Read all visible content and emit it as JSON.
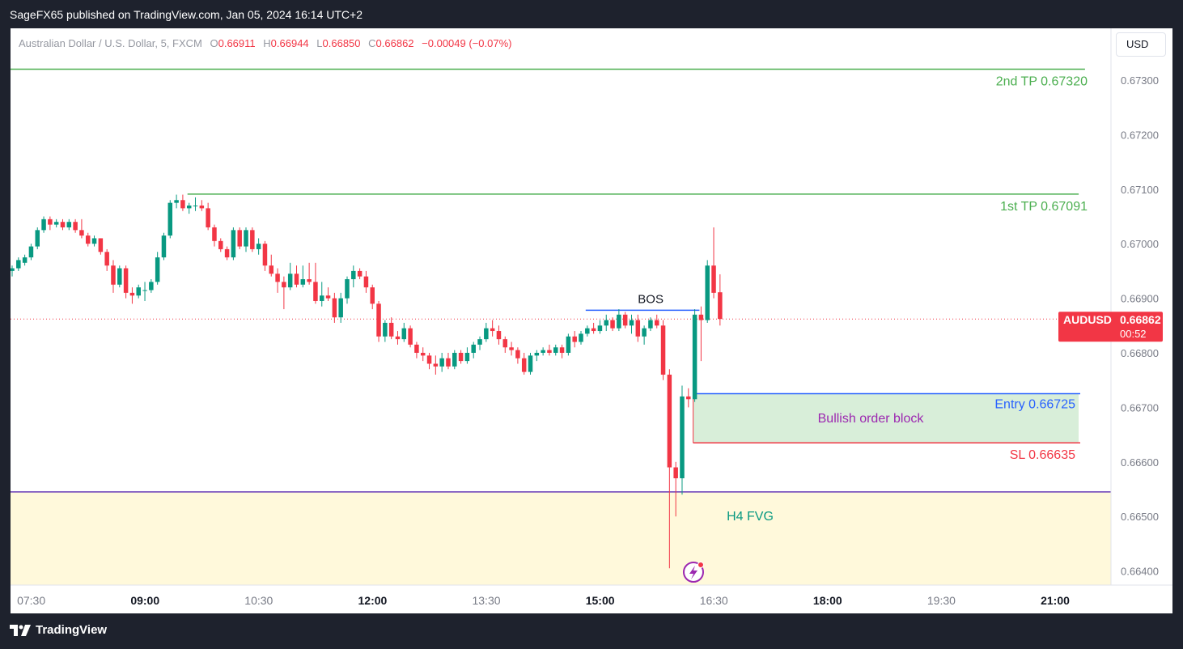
{
  "header": {
    "publisher": "SageFX65 published on TradingView.com, Jan 05, 2024 16:14 UTC+2"
  },
  "legend": {
    "symbol": "Australian Dollar / U.S. Dollar, 5, FXCM",
    "open_label": "O",
    "open": "0.66911",
    "high_label": "H",
    "high": "0.66944",
    "low_label": "L",
    "low": "0.66850",
    "close_label": "C",
    "close": "0.66862",
    "change": "−0.00049 (−0.07%)"
  },
  "currency_button": "USD",
  "footer": {
    "brand": "TradingView"
  },
  "colors": {
    "up": "#089981",
    "down": "#f23645",
    "tp_line": "#4caf50",
    "entry_line": "#2962ff",
    "sl_line": "#f23645",
    "order_block_fill": "#d8eed9",
    "fvg_fill": "#fff9db",
    "fvg_line": "#673ab7",
    "bos_line": "#2962ff"
  },
  "chart_data": {
    "type": "candlestick",
    "symbol": "AUDUSD",
    "timeframe": "5",
    "ylim": [
      0.6637,
      0.6735
    ],
    "xlim": [
      "07:20",
      "21:30"
    ],
    "y_ticks": [
      "0.67300",
      "0.67200",
      "0.67100",
      "0.67000",
      "0.66900",
      "0.66800",
      "0.66700",
      "0.66600",
      "0.66500",
      "0.66400"
    ],
    "x_ticks": [
      {
        "label": "07:30",
        "bold": false
      },
      {
        "label": "09:00",
        "bold": true
      },
      {
        "label": "10:30",
        "bold": false
      },
      {
        "label": "12:00",
        "bold": true
      },
      {
        "label": "13:30",
        "bold": false
      },
      {
        "label": "15:00",
        "bold": true
      },
      {
        "label": "16:30",
        "bold": false
      },
      {
        "label": "18:00",
        "bold": true
      },
      {
        "label": "19:30",
        "bold": false
      },
      {
        "label": "21:00",
        "bold": true
      }
    ],
    "price_tag": {
      "symbol": "AUDUSD",
      "price": "0.66862",
      "countdown": "00:52"
    },
    "last_price": 0.66862,
    "candles": [
      {
        "t": "07:20",
        "o": 0.6695,
        "h": 0.6696,
        "l": 0.6694,
        "c": 0.66955
      },
      {
        "t": "07:25",
        "o": 0.66955,
        "h": 0.66975,
        "l": 0.6695,
        "c": 0.6697
      },
      {
        "t": "07:30",
        "o": 0.66965,
        "h": 0.6698,
        "l": 0.6696,
        "c": 0.66975
      },
      {
        "t": "07:35",
        "o": 0.66975,
        "h": 0.67,
        "l": 0.6697,
        "c": 0.66995
      },
      {
        "t": "07:40",
        "o": 0.66995,
        "h": 0.6703,
        "l": 0.6699,
        "c": 0.67025
      },
      {
        "t": "07:45",
        "o": 0.67025,
        "h": 0.6705,
        "l": 0.6702,
        "c": 0.67045
      },
      {
        "t": "07:50",
        "o": 0.67045,
        "h": 0.6705,
        "l": 0.67025,
        "c": 0.67035
      },
      {
        "t": "07:55",
        "o": 0.67035,
        "h": 0.67045,
        "l": 0.6703,
        "c": 0.6704
      },
      {
        "t": "08:00",
        "o": 0.6704,
        "h": 0.67045,
        "l": 0.67025,
        "c": 0.6703
      },
      {
        "t": "08:05",
        "o": 0.6703,
        "h": 0.67045,
        "l": 0.67025,
        "c": 0.6704
      },
      {
        "t": "08:10",
        "o": 0.6704,
        "h": 0.67045,
        "l": 0.6702,
        "c": 0.67025
      },
      {
        "t": "08:15",
        "o": 0.67025,
        "h": 0.67045,
        "l": 0.6701,
        "c": 0.67015
      },
      {
        "t": "08:20",
        "o": 0.67015,
        "h": 0.6702,
        "l": 0.66995,
        "c": 0.67
      },
      {
        "t": "08:25",
        "o": 0.67,
        "h": 0.67015,
        "l": 0.66995,
        "c": 0.6701
      },
      {
        "t": "08:30",
        "o": 0.6701,
        "h": 0.6701,
        "l": 0.6698,
        "c": 0.66985
      },
      {
        "t": "08:35",
        "o": 0.66985,
        "h": 0.6699,
        "l": 0.6695,
        "c": 0.6696
      },
      {
        "t": "08:40",
        "o": 0.6696,
        "h": 0.6697,
        "l": 0.6691,
        "c": 0.66925
      },
      {
        "t": "08:45",
        "o": 0.66925,
        "h": 0.6696,
        "l": 0.6692,
        "c": 0.66955
      },
      {
        "t": "08:50",
        "o": 0.66955,
        "h": 0.6696,
        "l": 0.669,
        "c": 0.6691
      },
      {
        "t": "08:55",
        "o": 0.6691,
        "h": 0.6692,
        "l": 0.6689,
        "c": 0.66905
      },
      {
        "t": "09:00",
        "o": 0.66905,
        "h": 0.66925,
        "l": 0.669,
        "c": 0.6692
      },
      {
        "t": "09:05",
        "o": 0.66915,
        "h": 0.6693,
        "l": 0.66895,
        "c": 0.66915
      },
      {
        "t": "09:10",
        "o": 0.66915,
        "h": 0.66935,
        "l": 0.6691,
        "c": 0.6693
      },
      {
        "t": "09:15",
        "o": 0.6693,
        "h": 0.66985,
        "l": 0.66925,
        "c": 0.66975
      },
      {
        "t": "09:20",
        "o": 0.66975,
        "h": 0.6702,
        "l": 0.6697,
        "c": 0.67015
      },
      {
        "t": "09:25",
        "o": 0.67015,
        "h": 0.6708,
        "l": 0.6701,
        "c": 0.67075
      },
      {
        "t": "09:30",
        "o": 0.67075,
        "h": 0.6709,
        "l": 0.67065,
        "c": 0.6708
      },
      {
        "t": "09:35",
        "o": 0.6708,
        "h": 0.6709,
        "l": 0.6706,
        "c": 0.67065
      },
      {
        "t": "09:40",
        "o": 0.67065,
        "h": 0.67075,
        "l": 0.67055,
        "c": 0.6707
      },
      {
        "t": "09:45",
        "o": 0.6707,
        "h": 0.67085,
        "l": 0.6706,
        "c": 0.6707
      },
      {
        "t": "09:50",
        "o": 0.6707,
        "h": 0.6708,
        "l": 0.6706,
        "c": 0.67065
      },
      {
        "t": "09:55",
        "o": 0.67065,
        "h": 0.67075,
        "l": 0.67025,
        "c": 0.6703
      },
      {
        "t": "10:00",
        "o": 0.6703,
        "h": 0.67035,
        "l": 0.66995,
        "c": 0.67005
      },
      {
        "t": "10:05",
        "o": 0.67005,
        "h": 0.6701,
        "l": 0.66985,
        "c": 0.6699
      },
      {
        "t": "10:10",
        "o": 0.6699,
        "h": 0.66995,
        "l": 0.6697,
        "c": 0.66975
      },
      {
        "t": "10:15",
        "o": 0.66975,
        "h": 0.6703,
        "l": 0.6697,
        "c": 0.67025
      },
      {
        "t": "10:20",
        "o": 0.67025,
        "h": 0.6703,
        "l": 0.6699,
        "c": 0.66995
      },
      {
        "t": "10:25",
        "o": 0.66995,
        "h": 0.6703,
        "l": 0.66985,
        "c": 0.67025
      },
      {
        "t": "10:30",
        "o": 0.67025,
        "h": 0.6703,
        "l": 0.66985,
        "c": 0.6699
      },
      {
        "t": "10:35",
        "o": 0.6699,
        "h": 0.6701,
        "l": 0.6698,
        "c": 0.67
      },
      {
        "t": "10:40",
        "o": 0.67,
        "h": 0.67005,
        "l": 0.6695,
        "c": 0.6696
      },
      {
        "t": "10:45",
        "o": 0.6696,
        "h": 0.6698,
        "l": 0.6694,
        "c": 0.66945
      },
      {
        "t": "10:50",
        "o": 0.66945,
        "h": 0.66955,
        "l": 0.6691,
        "c": 0.6693
      },
      {
        "t": "10:55",
        "o": 0.6693,
        "h": 0.6694,
        "l": 0.6688,
        "c": 0.6692
      },
      {
        "t": "11:00",
        "o": 0.6692,
        "h": 0.66965,
        "l": 0.66915,
        "c": 0.66945
      },
      {
        "t": "11:05",
        "o": 0.66945,
        "h": 0.6696,
        "l": 0.6692,
        "c": 0.66925
      },
      {
        "t": "11:10",
        "o": 0.66925,
        "h": 0.6696,
        "l": 0.6692,
        "c": 0.66935
      },
      {
        "t": "11:15",
        "o": 0.66935,
        "h": 0.66965,
        "l": 0.66925,
        "c": 0.6693
      },
      {
        "t": "11:20",
        "o": 0.6693,
        "h": 0.66965,
        "l": 0.6689,
        "c": 0.66895
      },
      {
        "t": "11:25",
        "o": 0.66895,
        "h": 0.6693,
        "l": 0.66885,
        "c": 0.66905
      },
      {
        "t": "11:30",
        "o": 0.66905,
        "h": 0.6692,
        "l": 0.66895,
        "c": 0.669
      },
      {
        "t": "11:35",
        "o": 0.669,
        "h": 0.6691,
        "l": 0.66855,
        "c": 0.66865
      },
      {
        "t": "11:40",
        "o": 0.66865,
        "h": 0.6691,
        "l": 0.66855,
        "c": 0.669
      },
      {
        "t": "11:45",
        "o": 0.669,
        "h": 0.6694,
        "l": 0.6689,
        "c": 0.66935
      },
      {
        "t": "11:50",
        "o": 0.66935,
        "h": 0.6696,
        "l": 0.6692,
        "c": 0.6695
      },
      {
        "t": "11:55",
        "o": 0.6695,
        "h": 0.66955,
        "l": 0.66935,
        "c": 0.6694
      },
      {
        "t": "12:00",
        "o": 0.6694,
        "h": 0.6695,
        "l": 0.6691,
        "c": 0.6692
      },
      {
        "t": "12:05",
        "o": 0.6692,
        "h": 0.66925,
        "l": 0.6688,
        "c": 0.6689
      },
      {
        "t": "12:10",
        "o": 0.6689,
        "h": 0.66895,
        "l": 0.6682,
        "c": 0.6683
      },
      {
        "t": "12:15",
        "o": 0.6683,
        "h": 0.6686,
        "l": 0.6682,
        "c": 0.66855
      },
      {
        "t": "12:20",
        "o": 0.66855,
        "h": 0.66865,
        "l": 0.66825,
        "c": 0.6683
      },
      {
        "t": "12:25",
        "o": 0.6683,
        "h": 0.6684,
        "l": 0.66815,
        "c": 0.66825
      },
      {
        "t": "12:30",
        "o": 0.66825,
        "h": 0.66855,
        "l": 0.6682,
        "c": 0.66845
      },
      {
        "t": "12:35",
        "o": 0.66845,
        "h": 0.6685,
        "l": 0.6681,
        "c": 0.66815
      },
      {
        "t": "12:40",
        "o": 0.66815,
        "h": 0.6682,
        "l": 0.6679,
        "c": 0.668
      },
      {
        "t": "12:45",
        "o": 0.668,
        "h": 0.6681,
        "l": 0.66785,
        "c": 0.66795
      },
      {
        "t": "12:50",
        "o": 0.66795,
        "h": 0.668,
        "l": 0.6677,
        "c": 0.6678
      },
      {
        "t": "12:55",
        "o": 0.6678,
        "h": 0.66795,
        "l": 0.6676,
        "c": 0.66775
      },
      {
        "t": "13:00",
        "o": 0.66775,
        "h": 0.668,
        "l": 0.66765,
        "c": 0.6679
      },
      {
        "t": "13:05",
        "o": 0.6679,
        "h": 0.668,
        "l": 0.6677,
        "c": 0.66775
      },
      {
        "t": "13:10",
        "o": 0.66775,
        "h": 0.66805,
        "l": 0.6677,
        "c": 0.668
      },
      {
        "t": "13:15",
        "o": 0.668,
        "h": 0.66805,
        "l": 0.6678,
        "c": 0.66785
      },
      {
        "t": "13:20",
        "o": 0.66785,
        "h": 0.6681,
        "l": 0.6678,
        "c": 0.668
      },
      {
        "t": "13:25",
        "o": 0.668,
        "h": 0.6682,
        "l": 0.6679,
        "c": 0.66815
      },
      {
        "t": "13:30",
        "o": 0.66815,
        "h": 0.6683,
        "l": 0.66805,
        "c": 0.66825
      },
      {
        "t": "13:35",
        "o": 0.66825,
        "h": 0.66855,
        "l": 0.6682,
        "c": 0.66845
      },
      {
        "t": "13:40",
        "o": 0.66845,
        "h": 0.6686,
        "l": 0.6683,
        "c": 0.6684
      },
      {
        "t": "13:45",
        "o": 0.6684,
        "h": 0.6685,
        "l": 0.66815,
        "c": 0.66825
      },
      {
        "t": "13:50",
        "o": 0.66825,
        "h": 0.6683,
        "l": 0.668,
        "c": 0.6681
      },
      {
        "t": "13:55",
        "o": 0.6681,
        "h": 0.6682,
        "l": 0.66795,
        "c": 0.66805
      },
      {
        "t": "14:00",
        "o": 0.66805,
        "h": 0.6681,
        "l": 0.6678,
        "c": 0.6679
      },
      {
        "t": "14:05",
        "o": 0.6679,
        "h": 0.668,
        "l": 0.6676,
        "c": 0.66765
      },
      {
        "t": "14:10",
        "o": 0.66765,
        "h": 0.668,
        "l": 0.6676,
        "c": 0.66795
      },
      {
        "t": "14:15",
        "o": 0.66795,
        "h": 0.66805,
        "l": 0.66785,
        "c": 0.668
      },
      {
        "t": "14:20",
        "o": 0.668,
        "h": 0.6681,
        "l": 0.66795,
        "c": 0.66805
      },
      {
        "t": "14:25",
        "o": 0.66805,
        "h": 0.66815,
        "l": 0.66795,
        "c": 0.668
      },
      {
        "t": "14:30",
        "o": 0.668,
        "h": 0.66815,
        "l": 0.66795,
        "c": 0.6681
      },
      {
        "t": "14:35",
        "o": 0.6681,
        "h": 0.66815,
        "l": 0.6679,
        "c": 0.668
      },
      {
        "t": "14:40",
        "o": 0.668,
        "h": 0.66835,
        "l": 0.66795,
        "c": 0.6683
      },
      {
        "t": "14:45",
        "o": 0.6683,
        "h": 0.6684,
        "l": 0.6681,
        "c": 0.6682
      },
      {
        "t": "14:50",
        "o": 0.6682,
        "h": 0.6684,
        "l": 0.66815,
        "c": 0.66835
      },
      {
        "t": "14:55",
        "o": 0.66835,
        "h": 0.6685,
        "l": 0.6683,
        "c": 0.66845
      },
      {
        "t": "15:00",
        "o": 0.66845,
        "h": 0.66855,
        "l": 0.66835,
        "c": 0.6684
      },
      {
        "t": "15:05",
        "o": 0.6684,
        "h": 0.6686,
        "l": 0.66835,
        "c": 0.6685
      },
      {
        "t": "15:10",
        "o": 0.6685,
        "h": 0.6687,
        "l": 0.6684,
        "c": 0.6686
      },
      {
        "t": "15:15",
        "o": 0.6686,
        "h": 0.66865,
        "l": 0.6684,
        "c": 0.66845
      },
      {
        "t": "15:20",
        "o": 0.66845,
        "h": 0.6688,
        "l": 0.6684,
        "c": 0.6687
      },
      {
        "t": "15:25",
        "o": 0.6687,
        "h": 0.66875,
        "l": 0.66845,
        "c": 0.6685
      },
      {
        "t": "15:30",
        "o": 0.6685,
        "h": 0.6687,
        "l": 0.66835,
        "c": 0.6686
      },
      {
        "t": "15:35",
        "o": 0.6686,
        "h": 0.6687,
        "l": 0.6682,
        "c": 0.6683
      },
      {
        "t": "15:40",
        "o": 0.6683,
        "h": 0.6685,
        "l": 0.66815,
        "c": 0.66845
      },
      {
        "t": "15:45",
        "o": 0.66845,
        "h": 0.66865,
        "l": 0.6684,
        "c": 0.6686
      },
      {
        "t": "15:50",
        "o": 0.6686,
        "h": 0.6687,
        "l": 0.66845,
        "c": 0.6685
      },
      {
        "t": "15:55",
        "o": 0.6685,
        "h": 0.6686,
        "l": 0.6675,
        "c": 0.6676
      },
      {
        "t": "16:00",
        "o": 0.6676,
        "h": 0.6677,
        "l": 0.66405,
        "c": 0.6659
      },
      {
        "t": "16:05",
        "o": 0.6659,
        "h": 0.666,
        "l": 0.665,
        "c": 0.6657
      },
      {
        "t": "16:10",
        "o": 0.6657,
        "h": 0.6674,
        "l": 0.6654,
        "c": 0.6672
      },
      {
        "t": "16:15",
        "o": 0.6672,
        "h": 0.66735,
        "l": 0.667,
        "c": 0.66715
      },
      {
        "t": "16:20",
        "o": 0.66715,
        "h": 0.6688,
        "l": 0.6671,
        "c": 0.6687
      },
      {
        "t": "16:25",
        "o": 0.6687,
        "h": 0.66885,
        "l": 0.66785,
        "c": 0.6686
      },
      {
        "t": "16:30",
        "o": 0.6686,
        "h": 0.6697,
        "l": 0.66855,
        "c": 0.6696
      },
      {
        "t": "16:35",
        "o": 0.6696,
        "h": 0.6703,
        "l": 0.669,
        "c": 0.6691
      },
      {
        "t": "16:40",
        "o": 0.66911,
        "h": 0.66944,
        "l": 0.6685,
        "c": 0.66862
      }
    ],
    "annotations": [
      {
        "kind": "hline",
        "label": "2nd TP 0.67320",
        "price": 0.6732,
        "from": "07:20",
        "to": "21:30",
        "color": "#4caf50"
      },
      {
        "kind": "hline",
        "label": "1st TP 0.67091",
        "price": 0.67091,
        "from": "09:40",
        "to": "21:25",
        "color": "#4caf50"
      },
      {
        "kind": "segment",
        "label": "BOS",
        "price": 0.66878,
        "from": "14:55",
        "to": "16:25",
        "color": "#2962ff"
      },
      {
        "kind": "box",
        "label": "Bullish order block",
        "top": 0.66725,
        "bottom": 0.66635,
        "from": "16:20",
        "to": "21:30",
        "fill": "#d8eed9"
      },
      {
        "kind": "level_label",
        "label": "Entry  0.66725",
        "price": 0.66725,
        "color": "#2962ff"
      },
      {
        "kind": "level_label",
        "label": "SL 0.66635",
        "price": 0.66635,
        "color": "#f23645"
      },
      {
        "kind": "zone",
        "label": "H4 FVG",
        "top": 0.66545,
        "bottom": 0.6637,
        "fill": "#fff9db",
        "line": "#673ab7"
      }
    ]
  }
}
